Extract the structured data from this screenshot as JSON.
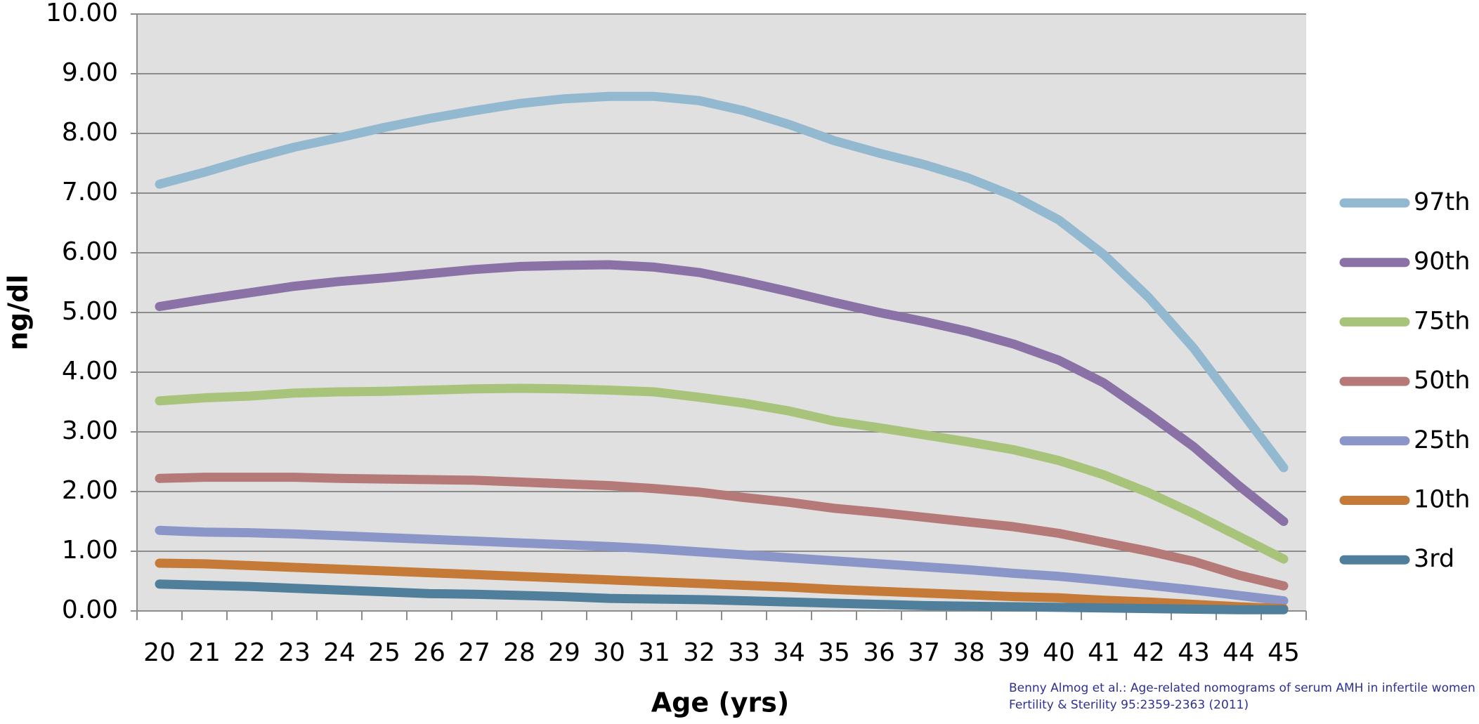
{
  "chart_data": {
    "type": "line",
    "x_label": "Age (yrs)",
    "y_label": "ng/dl",
    "categories": [
      "20",
      "21",
      "22",
      "23",
      "24",
      "25",
      "26",
      "27",
      "28",
      "29",
      "30",
      "31",
      "32",
      "33",
      "34",
      "35",
      "36",
      "37",
      "38",
      "39",
      "40",
      "41",
      "42",
      "43",
      "44",
      "45"
    ],
    "ylim": [
      0,
      10
    ],
    "yticks": [
      {
        "value": 0,
        "label": "0.00"
      },
      {
        "value": 1,
        "label": "1.00"
      },
      {
        "value": 2,
        "label": "2.00"
      },
      {
        "value": 3,
        "label": "3.00"
      },
      {
        "value": 4,
        "label": "4.00"
      },
      {
        "value": 5,
        "label": "5.00"
      },
      {
        "value": 6,
        "label": "6.00"
      },
      {
        "value": 7,
        "label": "7.00"
      },
      {
        "value": 8,
        "label": "8.00"
      },
      {
        "value": 9,
        "label": "9.00"
      },
      {
        "value": 10,
        "label": "10.00"
      }
    ],
    "grid": true,
    "legend": "right",
    "series": [
      {
        "name": "97th",
        "color": "#93b9d1",
        "values": [
          7.15,
          7.35,
          7.57,
          7.77,
          7.93,
          8.1,
          8.25,
          8.38,
          8.5,
          8.58,
          8.62,
          8.62,
          8.55,
          8.38,
          8.15,
          7.88,
          7.67,
          7.48,
          7.25,
          6.95,
          6.55,
          5.97,
          5.25,
          4.4,
          3.4,
          2.4
        ]
      },
      {
        "name": "90th",
        "color": "#8a72a6",
        "values": [
          5.1,
          5.22,
          5.33,
          5.44,
          5.52,
          5.58,
          5.65,
          5.72,
          5.77,
          5.79,
          5.8,
          5.76,
          5.67,
          5.52,
          5.35,
          5.17,
          5.0,
          4.85,
          4.68,
          4.47,
          4.2,
          3.82,
          3.3,
          2.75,
          2.1,
          1.5
        ]
      },
      {
        "name": "75th",
        "color": "#a8c47a",
        "values": [
          3.52,
          3.57,
          3.6,
          3.65,
          3.67,
          3.68,
          3.7,
          3.72,
          3.73,
          3.72,
          3.7,
          3.67,
          3.58,
          3.48,
          3.35,
          3.18,
          3.07,
          2.95,
          2.83,
          2.7,
          2.52,
          2.28,
          1.98,
          1.63,
          1.25,
          0.87
        ]
      },
      {
        "name": "50th",
        "color": "#b57a78",
        "values": [
          2.22,
          2.24,
          2.24,
          2.24,
          2.22,
          2.21,
          2.2,
          2.19,
          2.16,
          2.13,
          2.1,
          2.05,
          1.99,
          1.9,
          1.82,
          1.72,
          1.65,
          1.57,
          1.49,
          1.41,
          1.3,
          1.15,
          1.0,
          0.83,
          0.6,
          0.42
        ]
      },
      {
        "name": "25th",
        "color": "#8a96c8",
        "values": [
          1.35,
          1.32,
          1.31,
          1.29,
          1.26,
          1.23,
          1.2,
          1.17,
          1.14,
          1.11,
          1.08,
          1.04,
          0.99,
          0.94,
          0.89,
          0.84,
          0.79,
          0.74,
          0.69,
          0.63,
          0.58,
          0.51,
          0.43,
          0.35,
          0.26,
          0.17
        ]
      },
      {
        "name": "10th",
        "color": "#c57a38",
        "values": [
          0.8,
          0.79,
          0.76,
          0.73,
          0.7,
          0.67,
          0.64,
          0.61,
          0.58,
          0.55,
          0.52,
          0.49,
          0.46,
          0.43,
          0.4,
          0.36,
          0.33,
          0.3,
          0.27,
          0.24,
          0.22,
          0.18,
          0.15,
          0.11,
          0.07,
          0.04
        ]
      },
      {
        "name": "3rd",
        "color": "#4f7f9a",
        "values": [
          0.45,
          0.43,
          0.41,
          0.38,
          0.35,
          0.32,
          0.29,
          0.28,
          0.26,
          0.24,
          0.21,
          0.2,
          0.19,
          0.17,
          0.15,
          0.13,
          0.11,
          0.09,
          0.08,
          0.07,
          0.06,
          0.05,
          0.04,
          0.03,
          0.02,
          0.02
        ]
      }
    ],
    "source": [
      "Benny Almog et al.: Age-related nomograms of serum AMH in infertile women",
      "Fertility & Sterility 95:2359-2363 (2011)"
    ]
  }
}
